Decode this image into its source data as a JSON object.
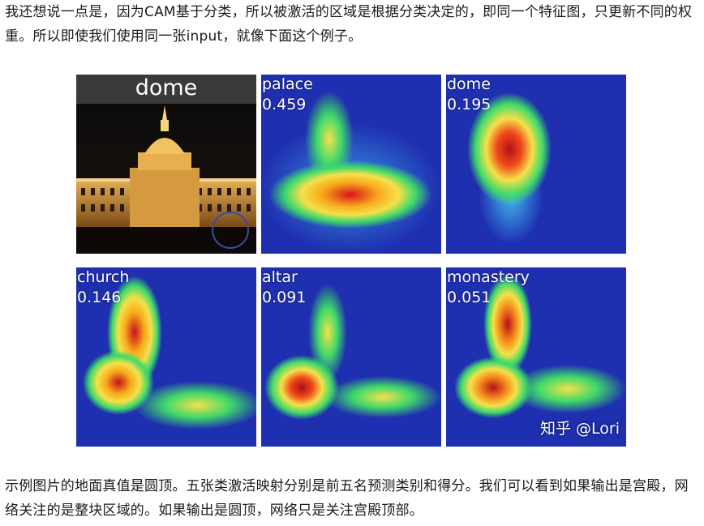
{
  "intro_text": "我还想说一点是，因为CAM基于分类，所以被激活的区域是根据分类决定的，即同一个特征图，只更新不同的权重。所以即使我们使用同一张input，就像下面这个例子。",
  "figure": {
    "photo_label": "dome",
    "panels": [
      {
        "label": "palace",
        "score": "0.459"
      },
      {
        "label": "dome",
        "score": "0.195"
      },
      {
        "label": "church",
        "score": "0.146"
      },
      {
        "label": "altar",
        "score": "0.091"
      },
      {
        "label": "monastery",
        "score": "0.051"
      }
    ],
    "watermark": "知乎 @Lori"
  },
  "outro_text": "示例图片的地面真值是圆顶。五张类激活映射分别是前五名预测类别和得分。我们可以看到如果输出是宫殿，网络关注的是整块区域的。如果输出是圆顶，网络只是关注宫殿顶部。",
  "colors": {
    "heat_low": "#1e2fb0",
    "heat_mid": "#3fd96a",
    "heat_high": "#d8141a"
  }
}
